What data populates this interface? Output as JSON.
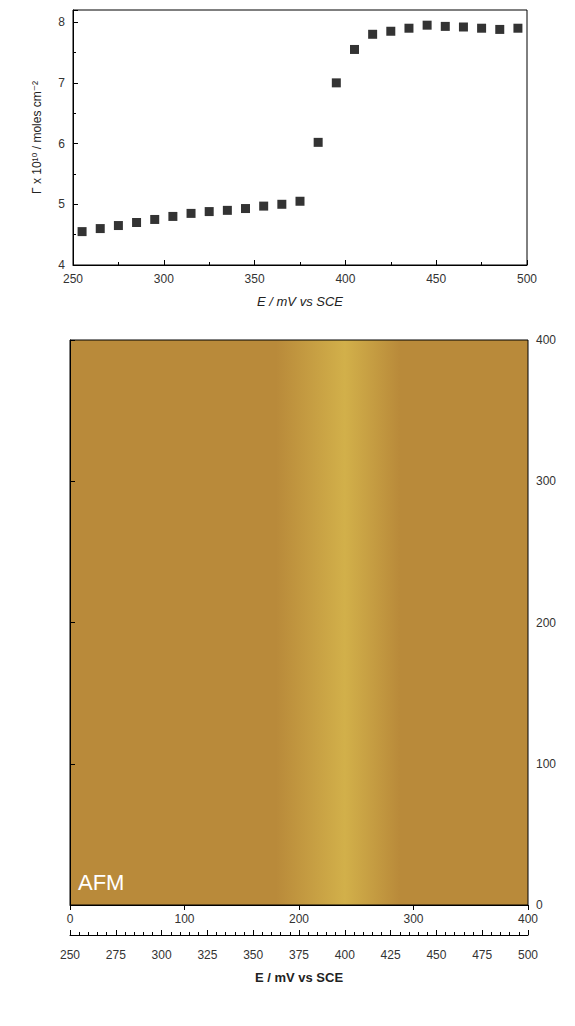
{
  "chart_data": [
    {
      "type": "scatter",
      "xlabel": "E / mV vs SCE",
      "ylabel": "Γ x 10¹⁰ / moles cm⁻²",
      "x": [
        255,
        265,
        275,
        285,
        295,
        305,
        315,
        325,
        335,
        345,
        355,
        365,
        375,
        385,
        395,
        405,
        415,
        425,
        435,
        445,
        455,
        465,
        475,
        485,
        495
      ],
      "values": [
        4.55,
        4.6,
        4.65,
        4.7,
        4.75,
        4.8,
        4.85,
        4.88,
        4.9,
        4.93,
        4.97,
        5.0,
        5.05,
        6.02,
        7.0,
        7.55,
        7.8,
        7.85,
        7.9,
        7.95,
        7.93,
        7.92,
        7.9,
        7.88,
        7.9
      ],
      "xlim": [
        250,
        500
      ],
      "xticks": [
        250,
        300,
        350,
        400,
        450,
        500
      ],
      "ylim": [
        4,
        8.2
      ],
      "yticks": [
        4,
        5,
        6,
        7,
        8
      ],
      "marker": "square",
      "color": "#000000"
    },
    {
      "type": "image",
      "annotation": "AFM",
      "color": "#b98a3a",
      "xlim": [
        0,
        400
      ],
      "xticks": [
        0,
        100,
        200,
        300,
        400
      ],
      "ylim": [
        0,
        400
      ],
      "yticks": [
        0,
        100,
        200,
        300,
        400
      ],
      "x2label": "E / mV vs SCE",
      "x2lim": [
        250,
        500
      ],
      "x2ticks": [
        250,
        275,
        300,
        325,
        350,
        375,
        400,
        425,
        450,
        475,
        500
      ]
    }
  ]
}
